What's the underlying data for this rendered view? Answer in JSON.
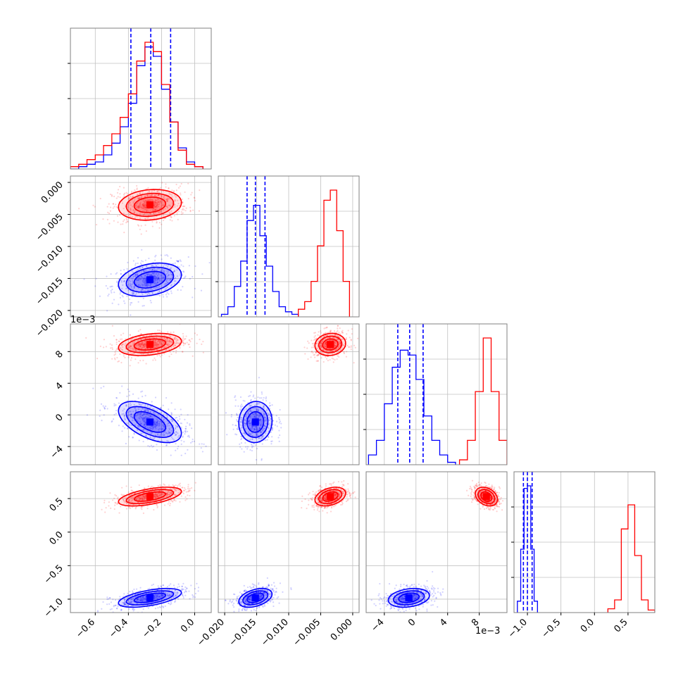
{
  "chart_data": {
    "type": "corner",
    "grid": true,
    "colors": {
      "series_a": "#0000ff",
      "series_b": "#ff0000",
      "axes": "#808080",
      "grid": "#c0c0c0"
    },
    "parameters": [
      {
        "range": [
          -0.75,
          0.1
        ],
        "ticks": [
          -0.6,
          -0.4,
          -0.2,
          0.0
        ],
        "tick_labels": [
          "−0.6",
          "−0.4",
          "−0.2",
          "0.0"
        ]
      },
      {
        "range": [
          -0.021,
          0.001
        ],
        "ticks": [
          -0.02,
          -0.015,
          -0.01,
          -0.005,
          0.0
        ],
        "tick_labels": [
          "−0.020",
          "−0.015",
          "−0.010",
          "−0.005",
          "0.000"
        ]
      },
      {
        "range": [
          -0.0063,
          0.0115
        ],
        "ticks": [
          -0.004,
          0.0,
          0.004,
          0.008
        ],
        "tick_labels": [
          "−4",
          "0",
          "4",
          "8"
        ],
        "offset_label": "1e−3"
      },
      {
        "range": [
          -1.2,
          0.9
        ],
        "ticks": [
          -1.0,
          -0.5,
          0.0,
          0.5
        ],
        "tick_labels": [
          "−1.0",
          "−0.5",
          "0.0",
          "0.5"
        ]
      }
    ],
    "series": [
      {
        "color": "#0000ff",
        "mean": [
          -0.27,
          -0.0152,
          -0.0009,
          -0.98
        ],
        "std": [
          0.095,
          0.0013,
          0.0013,
          0.07
        ],
        "quantile_lines": [
          [
            -0.385,
            -0.265,
            -0.145
          ],
          [
            -0.0165,
            -0.0152,
            -0.0137
          ],
          [
            -0.0023,
            -0.0008,
            0.0009
          ],
          [
            -1.06,
            -1.0,
            -0.93
          ]
        ],
        "histograms": [
          {
            "bins": [
              -0.75,
              -0.7,
              -0.65,
              -0.6,
              -0.55,
              -0.5,
              -0.45,
              -0.4,
              -0.35,
              -0.3,
              -0.25,
              -0.2,
              -0.15,
              -0.1,
              -0.05,
              0.0,
              0.05
            ],
            "counts": [
              0,
              1,
              2,
              3,
              6,
              11,
              18,
              28,
              44,
              52,
              48,
              34,
              20,
              9,
              3,
              1
            ]
          },
          {
            "bins": [
              -0.0205,
              -0.0195,
              -0.0185,
              -0.0175,
              -0.0165,
              -0.0155,
              -0.0145,
              -0.0135,
              -0.0125,
              -0.0115,
              -0.0105,
              -0.0095,
              -0.0085
            ],
            "counts": [
              1,
              4,
              12,
              22,
              38,
              44,
              32,
              20,
              10,
              4,
              2,
              1
            ]
          },
          {
            "bins": [
              -0.006,
              -0.005,
              -0.004,
              -0.003,
              -0.002,
              -0.001,
              0.0,
              0.001,
              0.002,
              0.003,
              0.004,
              0.005
            ],
            "counts": [
              4,
              10,
              25,
              40,
              47,
              45,
              35,
              20,
              10,
              4,
              1
            ]
          },
          {
            "bins": [
              -1.15,
              -1.1,
              -1.05,
              -1.0,
              -0.95,
              -0.9,
              -0.85
            ],
            "counts": [
              9,
              50,
              98,
              100,
              50,
              9
            ]
          }
        ]
      },
      {
        "color": "#ff0000",
        "mean": [
          -0.27,
          -0.0035,
          0.0089,
          0.53
        ],
        "std": [
          0.095,
          0.0012,
          0.0007,
          0.07
        ],
        "histograms": [
          {
            "bins": [
              -0.75,
              -0.7,
              -0.65,
              -0.6,
              -0.55,
              -0.5,
              -0.45,
              -0.4,
              -0.35,
              -0.3,
              -0.25,
              -0.2,
              -0.15,
              -0.1,
              -0.05,
              0.0,
              0.05
            ],
            "counts": [
              1,
              2,
              4,
              6,
              10,
              15,
              22,
              32,
              46,
              54,
              50,
              36,
              20,
              8,
              2,
              1
            ]
          },
          {
            "bins": [
              -0.0085,
              -0.0075,
              -0.0065,
              -0.0055,
              -0.0045,
              -0.0035,
              -0.0025,
              -0.0015,
              -0.0005
            ],
            "counts": [
              3,
              6,
              14,
              28,
              46,
              50,
              34,
              14
            ]
          },
          {
            "bins": [
              0.0055,
              0.0065,
              0.0075,
              0.0085,
              0.0095,
              0.0105,
              0.0115
            ],
            "counts": [
              2,
              10,
              30,
              52,
              30,
              10
            ]
          },
          {
            "bins": [
              0.2,
              0.3,
              0.4,
              0.5,
              0.6,
              0.7,
              0.8,
              0.9
            ],
            "counts": [
              3,
              10,
              66,
              85,
              45,
              10,
              2
            ]
          }
        ]
      }
    ]
  }
}
